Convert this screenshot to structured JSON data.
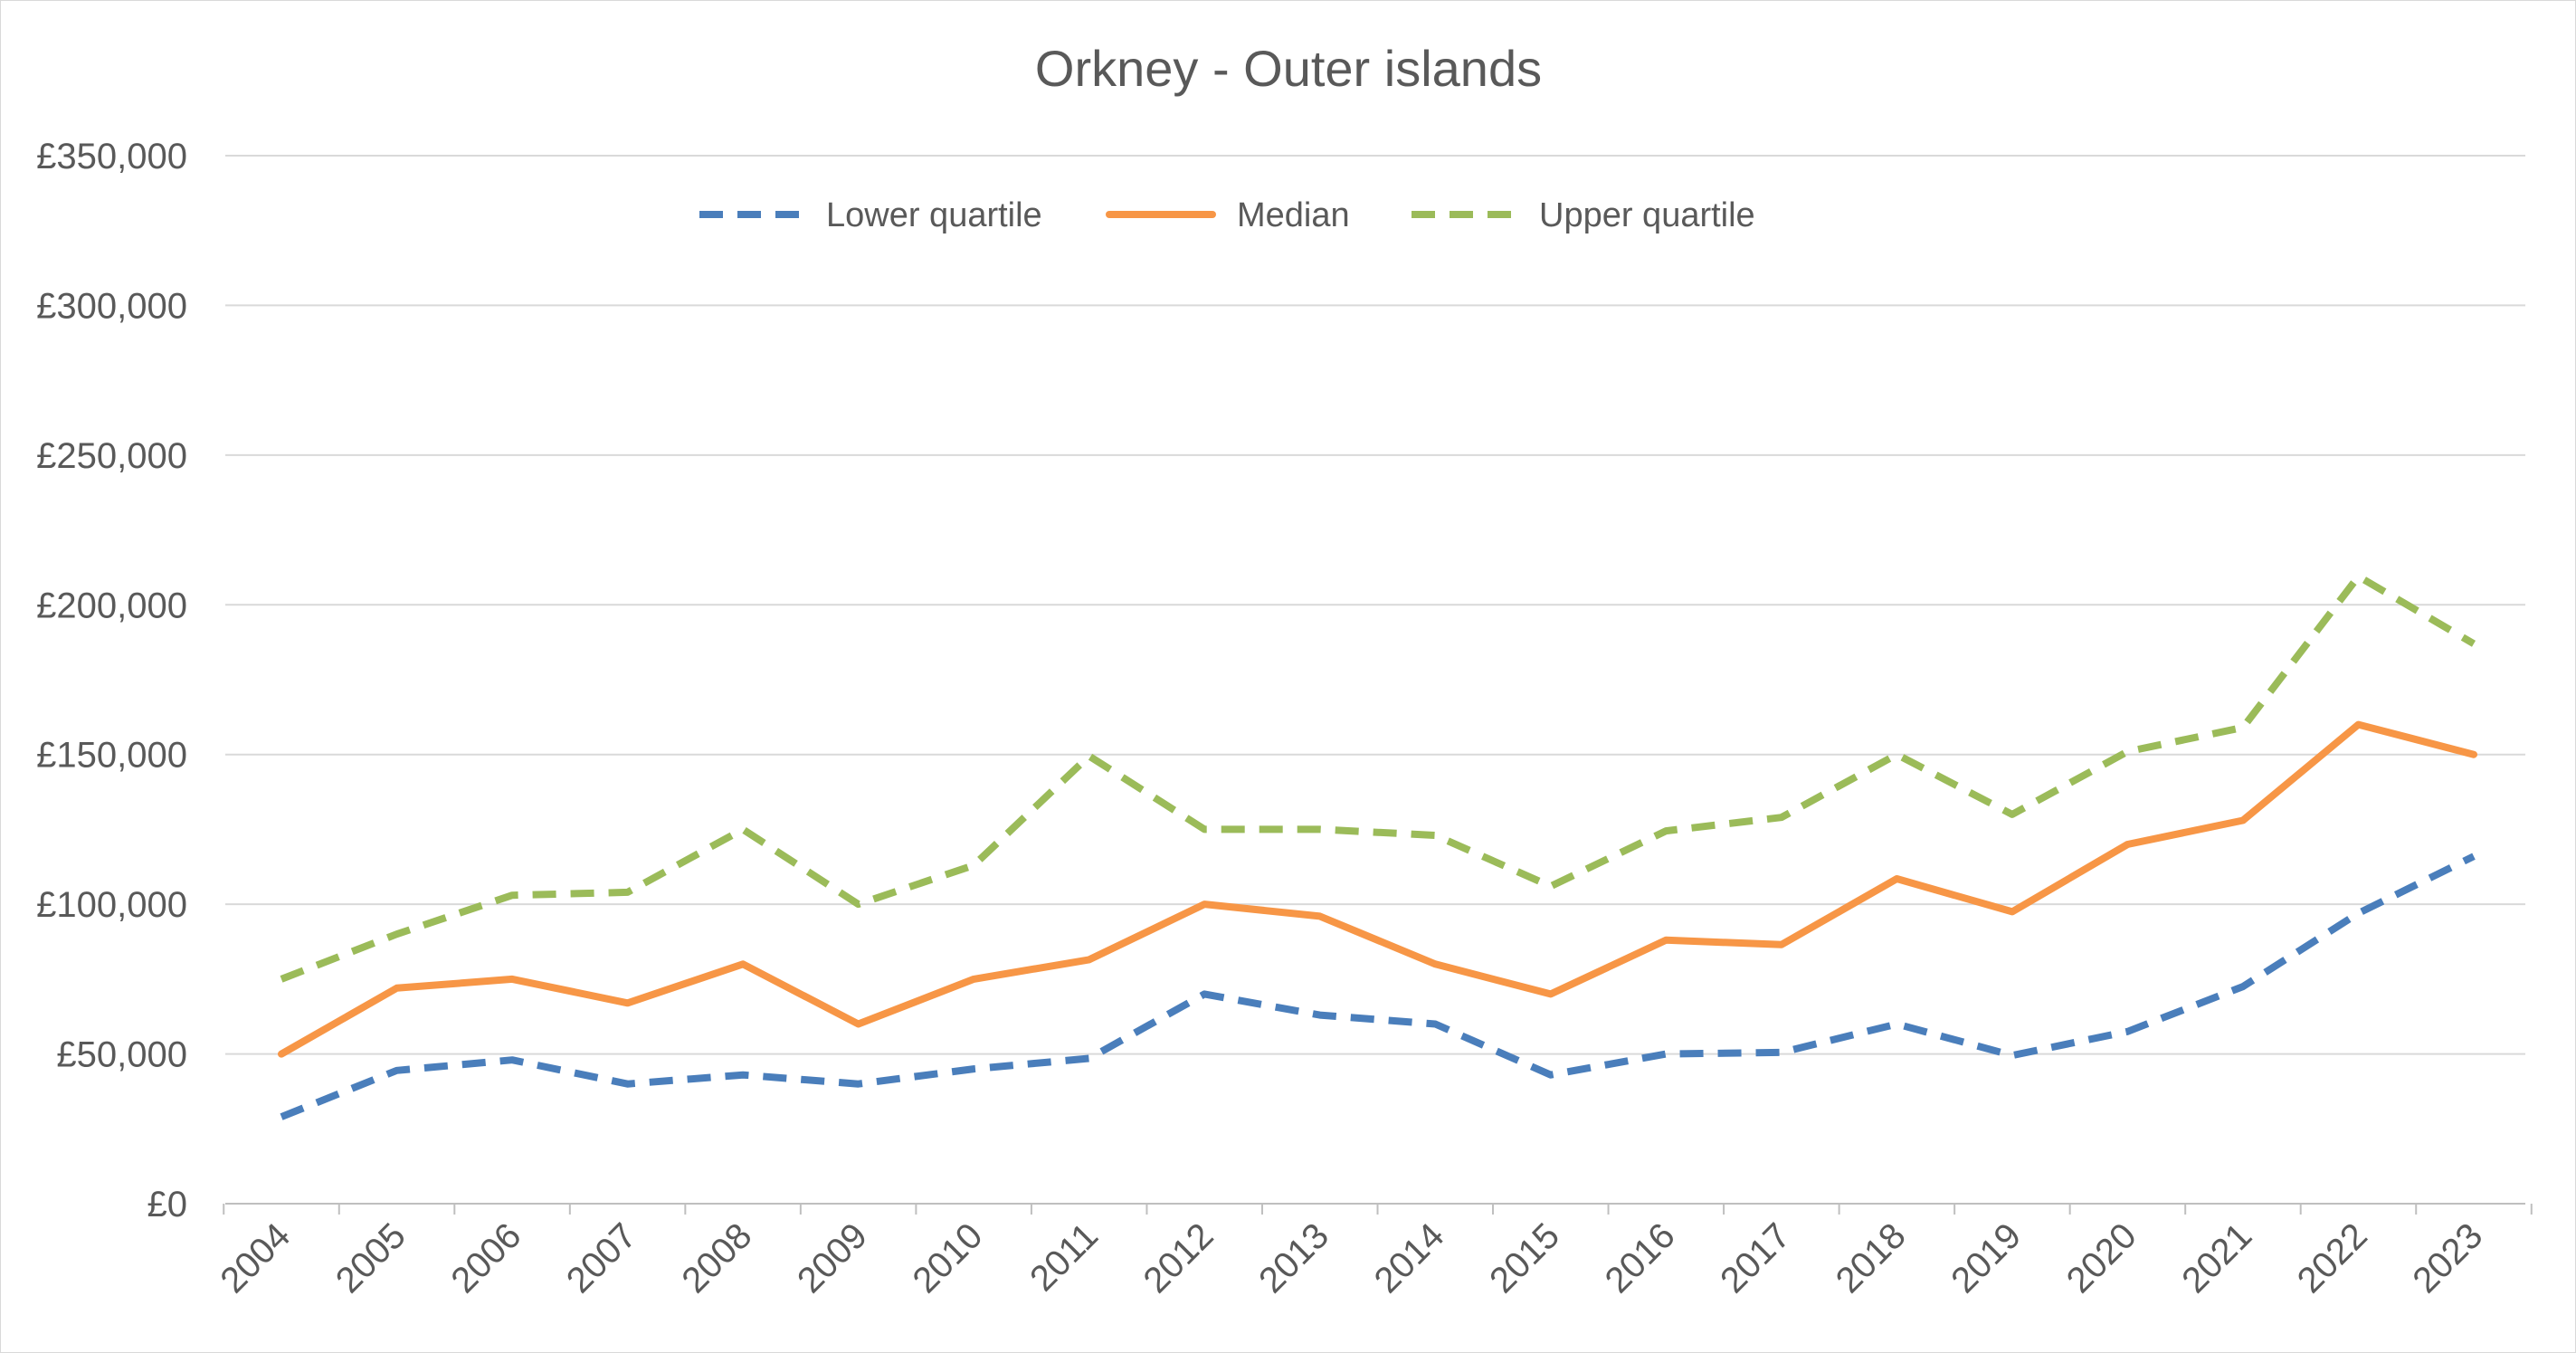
{
  "chart_data": {
    "type": "line",
    "title": "Orkney - Outer islands",
    "xlabel": "",
    "ylabel": "",
    "categories": [
      "2004",
      "2005",
      "2006",
      "2007",
      "2008",
      "2009",
      "2010",
      "2011",
      "2012",
      "2013",
      "2014",
      "2015",
      "2016",
      "2017",
      "2018",
      "2019",
      "2020",
      "2021",
      "2022",
      "2023"
    ],
    "ylim": [
      0,
      350000
    ],
    "y_ticks": [
      0,
      50000,
      100000,
      150000,
      200000,
      250000,
      300000,
      350000
    ],
    "y_tick_labels": [
      "£0",
      "£50,000",
      "£100,000",
      "£150,000",
      "£200,000",
      "£250,000",
      "£300,000",
      "£350,000"
    ],
    "grid": true,
    "legend_position": "top-center",
    "series": [
      {
        "name": "Lower quartile",
        "color": "#4a7ebb",
        "style": "dashed",
        "values": [
          29000,
          44500,
          48000,
          40000,
          43000,
          40000,
          45000,
          48500,
          70000,
          63000,
          60000,
          43000,
          50000,
          50500,
          60000,
          49500,
          57500,
          72500,
          97000,
          116000
        ]
      },
      {
        "name": "Median",
        "color": "#f79646",
        "style": "solid",
        "values": [
          50000,
          72000,
          75000,
          67000,
          80000,
          60000,
          75000,
          81500,
          100000,
          96000,
          80000,
          70000,
          88000,
          86500,
          108500,
          97500,
          120000,
          128000,
          160000,
          150000
        ]
      },
      {
        "name": "Upper quartile",
        "color": "#9bbb59",
        "style": "dashed",
        "values": [
          75000,
          90000,
          103000,
          104000,
          125000,
          100000,
          113000,
          149500,
          125000,
          125000,
          123000,
          106000,
          124500,
          129000,
          150000,
          130000,
          151000,
          159000,
          209500,
          187000
        ]
      }
    ]
  }
}
